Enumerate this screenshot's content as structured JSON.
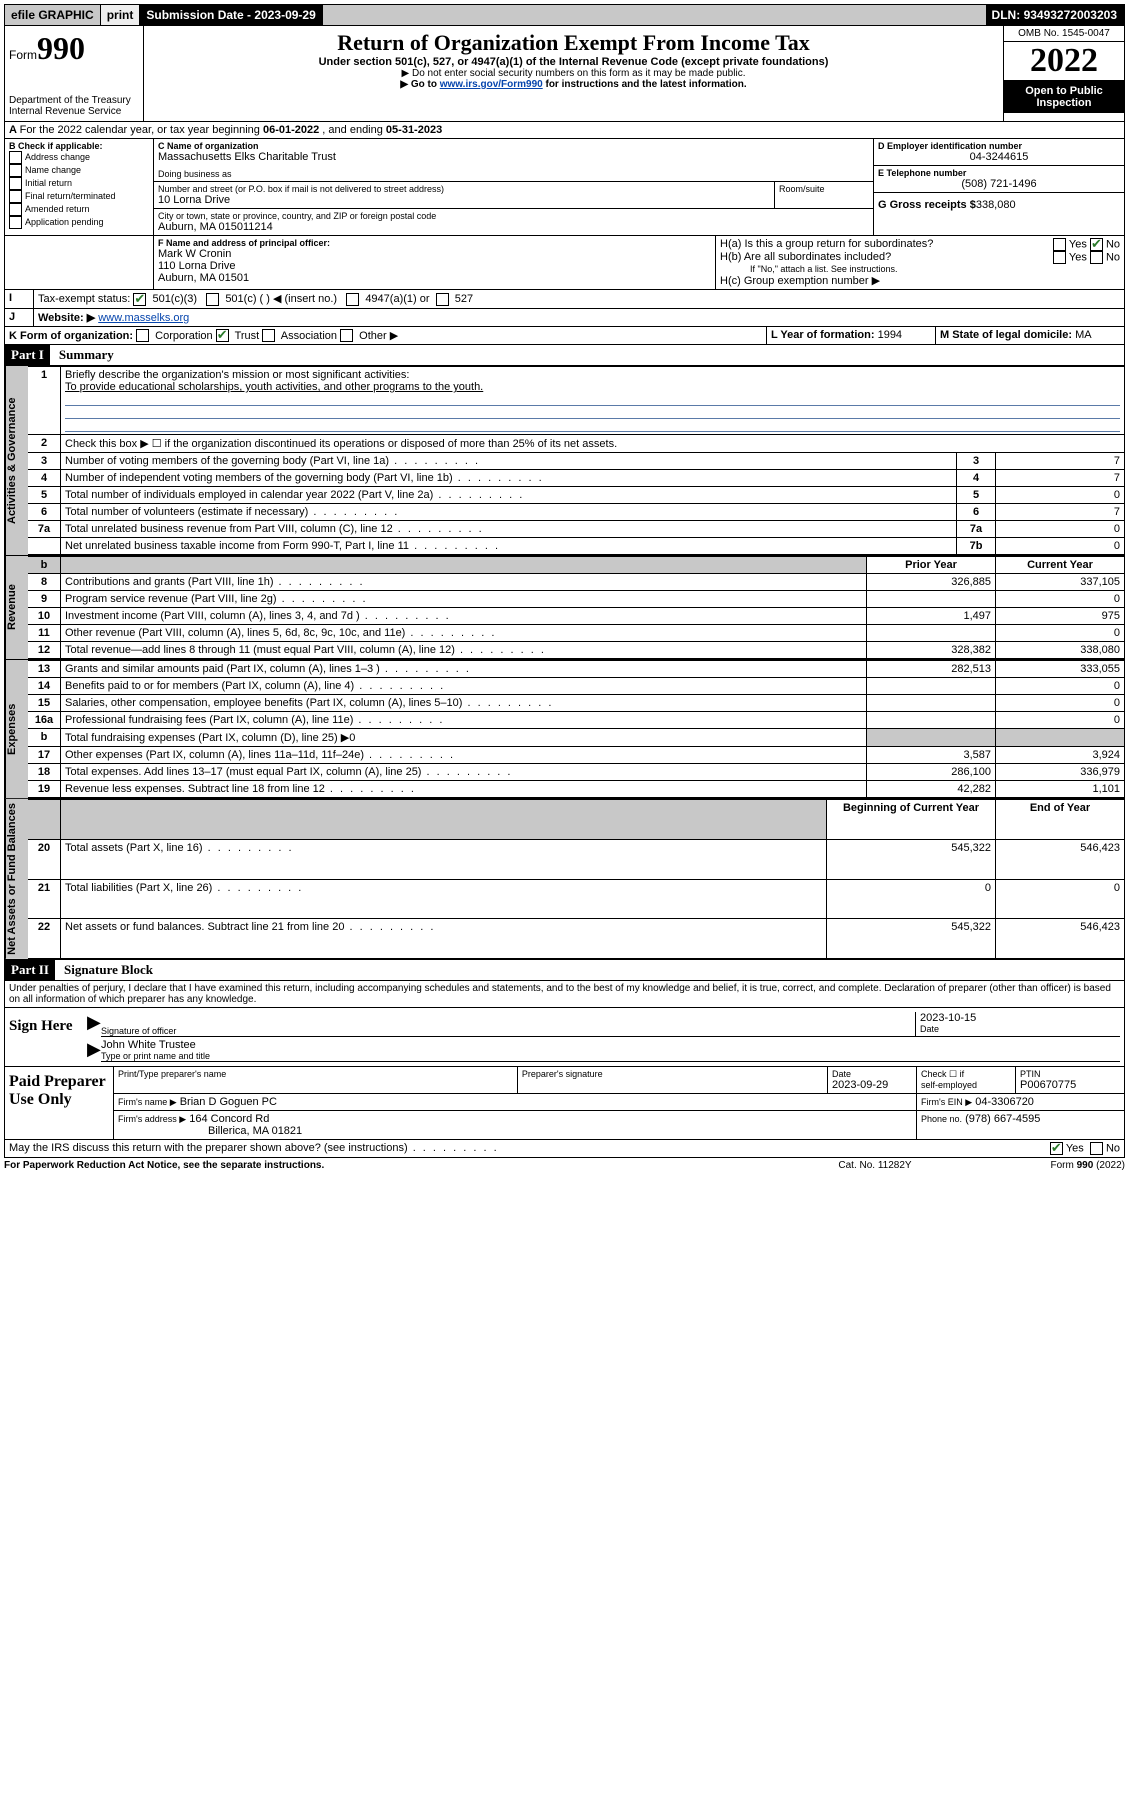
{
  "topbar": {
    "efile": "efile GRAPHIC",
    "print": "print",
    "sub_label": "Submission Date -",
    "sub_date": "2023-09-29",
    "dln_label": "DLN:",
    "dln": "93493272003203"
  },
  "header": {
    "form_label": "Form",
    "form_no": "990",
    "dept": "Department of the Treasury",
    "irs": "Internal Revenue Service",
    "title": "Return of Organization Exempt From Income Tax",
    "sub1": "Under section 501(c), 527, or 4947(a)(1) of the Internal Revenue Code (except private foundations)",
    "sub2": "▶ Do not enter social security numbers on this form as it may be made public.",
    "sub3a": "▶ Go to ",
    "sub3link": "www.irs.gov/Form990",
    "sub3b": " for instructions and the latest information.",
    "omb": "OMB No. 1545-0047",
    "year": "2022",
    "inspect": "Open to Public Inspection"
  },
  "A": {
    "text": "For the 2022 calendar year, or tax year beginning ",
    "begin": "06-01-2022",
    "mid": " , and ending ",
    "end": "05-31-2023"
  },
  "B": {
    "label": "B Check if applicable:",
    "opts": [
      "Address change",
      "Name change",
      "Initial return",
      "Final return/terminated",
      "Amended return",
      "Application pending"
    ]
  },
  "C": {
    "label": "C Name of organization",
    "name": "Massachusetts Elks Charitable Trust",
    "dba_label": "Doing business as",
    "street_label": "Number and street (or P.O. box if mail is not delivered to street address)",
    "room_label": "Room/suite",
    "street": "10 Lorna Drive",
    "city_label": "City or town, state or province, country, and ZIP or foreign postal code",
    "city": "Auburn, MA  015011214"
  },
  "D": {
    "label": "D Employer identification number",
    "ein": "04-3244615"
  },
  "E": {
    "label": "E Telephone number",
    "phone": "(508) 721-1496"
  },
  "G": {
    "label": "G Gross receipts $",
    "amt": "338,080"
  },
  "F": {
    "label": "F Name and address of principal officer:",
    "name": "Mark W Cronin",
    "addr1": "110 Lorna Drive",
    "addr2": "Auburn, MA  01501"
  },
  "H": {
    "a": "H(a)  Is this a group return for subordinates?",
    "b": "H(b)  Are all subordinates included?",
    "bnote": "If \"No,\" attach a list. See instructions.",
    "c": "H(c)  Group exemption number ▶",
    "yes": "Yes",
    "no": "No"
  },
  "I": {
    "label": "Tax-exempt status:",
    "o1": "501(c)(3)",
    "o2": "501(c) (  ) ◀ (insert no.)",
    "o3": "4947(a)(1) or",
    "o4": "527"
  },
  "J": {
    "label": "Website: ▶",
    "val": "www.masselks.org"
  },
  "K": {
    "label": "K Form of organization:",
    "opts": [
      "Corporation",
      "Trust",
      "Association",
      "Other ▶"
    ],
    "checked": 1
  },
  "L": {
    "label": "L Year of formation:",
    "val": "1994"
  },
  "M": {
    "label": "M State of legal domicile:",
    "val": "MA"
  },
  "part1": {
    "hdr": "Part I",
    "title": "Summary",
    "tabs": {
      "gov": "Activities & Governance",
      "rev": "Revenue",
      "exp": "Expenses",
      "net": "Net Assets or Fund Balances"
    },
    "l1a": "Briefly describe the organization's mission or most significant activities:",
    "l1b": "To provide educational scholarships, youth activities, and other programs to the youth.",
    "l2": "Check this box ▶ ☐  if the organization discontinued its operations or disposed of more than 25% of its net assets.",
    "lines": [
      {
        "n": "3",
        "t": "Number of voting members of the governing body (Part VI, line 1a)",
        "box": "3",
        "v": "7"
      },
      {
        "n": "4",
        "t": "Number of independent voting members of the governing body (Part VI, line 1b)",
        "box": "4",
        "v": "7"
      },
      {
        "n": "5",
        "t": "Total number of individuals employed in calendar year 2022 (Part V, line 2a)",
        "box": "5",
        "v": "0"
      },
      {
        "n": "6",
        "t": "Total number of volunteers (estimate if necessary)",
        "box": "6",
        "v": "7"
      },
      {
        "n": "7a",
        "t": "Total unrelated business revenue from Part VIII, column (C), line 12",
        "box": "7a",
        "v": "0"
      },
      {
        "n": "",
        "t": "Net unrelated business taxable income from Form 990-T, Part I, line 11",
        "box": "7b",
        "v": "0"
      }
    ],
    "col_prior": "Prior Year",
    "col_curr": "Current Year",
    "rev": [
      {
        "n": "8",
        "t": "Contributions and grants (Part VIII, line 1h)",
        "p": "326,885",
        "c": "337,105"
      },
      {
        "n": "9",
        "t": "Program service revenue (Part VIII, line 2g)",
        "p": "",
        "c": "0"
      },
      {
        "n": "10",
        "t": "Investment income (Part VIII, column (A), lines 3, 4, and 7d )",
        "p": "1,497",
        "c": "975"
      },
      {
        "n": "11",
        "t": "Other revenue (Part VIII, column (A), lines 5, 6d, 8c, 9c, 10c, and 11e)",
        "p": "",
        "c": "0"
      },
      {
        "n": "12",
        "t": "Total revenue—add lines 8 through 11 (must equal Part VIII, column (A), line 12)",
        "p": "328,382",
        "c": "338,080"
      }
    ],
    "exp": [
      {
        "n": "13",
        "t": "Grants and similar amounts paid (Part IX, column (A), lines 1–3 )",
        "p": "282,513",
        "c": "333,055"
      },
      {
        "n": "14",
        "t": "Benefits paid to or for members (Part IX, column (A), line 4)",
        "p": "",
        "c": "0"
      },
      {
        "n": "15",
        "t": "Salaries, other compensation, employee benefits (Part IX, column (A), lines 5–10)",
        "p": "",
        "c": "0"
      },
      {
        "n": "16a",
        "t": "Professional fundraising fees (Part IX, column (A), line 11e)",
        "p": "",
        "c": "0"
      }
    ],
    "exp_b": "Total fundraising expenses (Part IX, column (D), line 25) ▶0",
    "exp2": [
      {
        "n": "17",
        "t": "Other expenses (Part IX, column (A), lines 11a–11d, 11f–24e)",
        "p": "3,587",
        "c": "3,924"
      },
      {
        "n": "18",
        "t": "Total expenses. Add lines 13–17 (must equal Part IX, column (A), line 25)",
        "p": "286,100",
        "c": "336,979"
      },
      {
        "n": "19",
        "t": "Revenue less expenses. Subtract line 18 from line 12",
        "p": "42,282",
        "c": "1,101"
      }
    ],
    "col_begin": "Beginning of Current Year",
    "col_end": "End of Year",
    "net": [
      {
        "n": "20",
        "t": "Total assets (Part X, line 16)",
        "p": "545,322",
        "c": "546,423"
      },
      {
        "n": "21",
        "t": "Total liabilities (Part X, line 26)",
        "p": "0",
        "c": "0"
      },
      {
        "n": "22",
        "t": "Net assets or fund balances. Subtract line 21 from line 20",
        "p": "545,322",
        "c": "546,423"
      }
    ]
  },
  "part2": {
    "hdr": "Part II",
    "title": "Signature Block",
    "decl": "Under penalties of perjury, I declare that I have examined this return, including accompanying schedules and statements, and to the best of my knowledge and belief, it is true, correct, and complete. Declaration of preparer (other than officer) is based on all information of which preparer has any knowledge."
  },
  "sign": {
    "here": "Sign Here",
    "sig_label": "Signature of officer",
    "date_label": "Date",
    "date": "2023-10-15",
    "name": "John White Trustee",
    "name_label": "Type or print name and title"
  },
  "prep": {
    "label": "Paid Preparer Use Only",
    "c1": "Print/Type preparer's name",
    "c2": "Preparer's signature",
    "c3": "Date",
    "c3v": "2023-09-29",
    "c4a": "Check ☐ if",
    "c4b": "self-employed",
    "c5": "PTIN",
    "c5v": "P00670775",
    "firm_label": "Firm's name    ▶",
    "firm": "Brian D Goguen PC",
    "ein_label": "Firm's EIN ▶",
    "ein": "04-3306720",
    "addr_label": "Firm's address ▶",
    "addr1": "164 Concord Rd",
    "addr2": "Billerica, MA  01821",
    "phone_label": "Phone no.",
    "phone": "(978) 667-4595"
  },
  "footer": {
    "q": "May the IRS discuss this return with the preparer shown above? (see instructions)",
    "yes": "Yes",
    "no": "No",
    "pra": "For Paperwork Reduction Act Notice, see the separate instructions.",
    "cat": "Cat. No. 11282Y",
    "form": "Form 990 (2022)"
  }
}
